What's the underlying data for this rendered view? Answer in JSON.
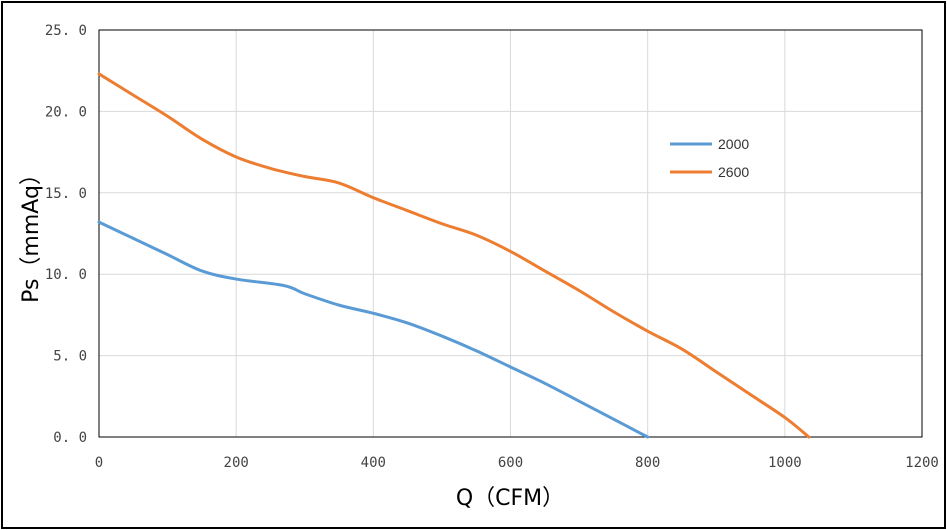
{
  "chart_data": {
    "type": "line",
    "title": "",
    "xlabel": "Q（CFM）",
    "ylabel": "Ps（mmAq）",
    "xlim": [
      0,
      1200
    ],
    "ylim": [
      0,
      25
    ],
    "x_ticks": [
      "0",
      "200",
      "400",
      "600",
      "800",
      "1000",
      "1200"
    ],
    "y_ticks": [
      "0. 0",
      "5. 0",
      "10. 0",
      "15. 0",
      "20. 0",
      "25. 0"
    ],
    "grid": true,
    "legend_position": "right",
    "series": [
      {
        "name": "2000",
        "color": "#5b9bd5",
        "points": [
          [
            0,
            13.2
          ],
          [
            50,
            12.2
          ],
          [
            100,
            11.2
          ],
          [
            150,
            10.2
          ],
          [
            200,
            9.7
          ],
          [
            270,
            9.3
          ],
          [
            300,
            8.8
          ],
          [
            350,
            8.1
          ],
          [
            400,
            7.6
          ],
          [
            450,
            7.0
          ],
          [
            500,
            6.2
          ],
          [
            550,
            5.3
          ],
          [
            600,
            4.3
          ],
          [
            650,
            3.3
          ],
          [
            700,
            2.2
          ],
          [
            750,
            1.1
          ],
          [
            800,
            0.0
          ]
        ]
      },
      {
        "name": "2600",
        "color": "#ed7d31",
        "points": [
          [
            0,
            22.3
          ],
          [
            50,
            21.0
          ],
          [
            100,
            19.7
          ],
          [
            150,
            18.3
          ],
          [
            200,
            17.2
          ],
          [
            250,
            16.5
          ],
          [
            300,
            16.0
          ],
          [
            350,
            15.6
          ],
          [
            400,
            14.7
          ],
          [
            450,
            13.9
          ],
          [
            500,
            13.1
          ],
          [
            550,
            12.4
          ],
          [
            600,
            11.4
          ],
          [
            650,
            10.2
          ],
          [
            700,
            9.0
          ],
          [
            750,
            7.7
          ],
          [
            800,
            6.5
          ],
          [
            850,
            5.4
          ],
          [
            900,
            4.0
          ],
          [
            950,
            2.6
          ],
          [
            1000,
            1.2
          ],
          [
            1035,
            0.0
          ]
        ]
      }
    ]
  }
}
